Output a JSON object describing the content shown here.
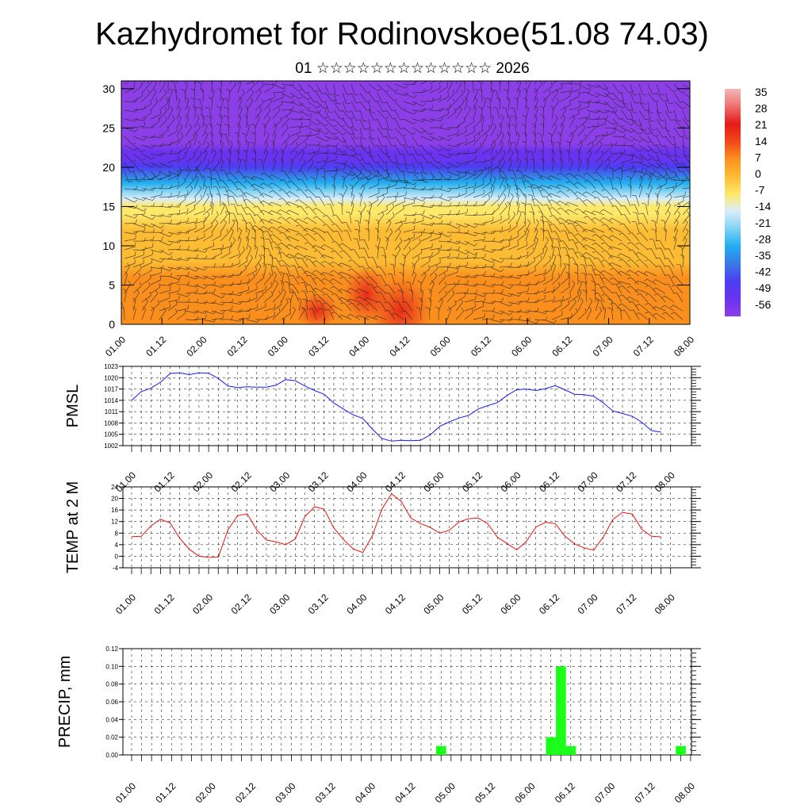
{
  "title": "Kazhydromet for Rodinovskoe(51.08 74.03)",
  "subtitle": "01 ☆☆☆☆☆☆☆☆☆☆☆☆☆ 2026",
  "time_labels": [
    "01.00",
    "01.12",
    "02.00",
    "02.12",
    "03.00",
    "03.12",
    "04.00",
    "04.12",
    "05.00",
    "05.12",
    "06.00",
    "06.12",
    "07.00",
    "07.12",
    "08.00"
  ],
  "colorbar": {
    "labels": [
      "35",
      "28",
      "21",
      "14",
      "7",
      "0",
      "-7",
      "-14",
      "-21",
      "-28",
      "-35",
      "-42",
      "-49",
      "-56"
    ],
    "colors": [
      "#f2b8b8",
      "#ee6f6f",
      "#e41a1a",
      "#f0481a",
      "#fb8f1e",
      "#fdbc34",
      "#ffe86a",
      "#d8eefb",
      "#7fd2f3",
      "#22aef0",
      "#3a78e8",
      "#4b3ef2",
      "#6a33f0",
      "#8c3fe6"
    ]
  },
  "chart_data": [
    {
      "id": "cross_section",
      "type": "heatmap",
      "description_field": "temperature cross-section with wind barbs",
      "ylim": [
        0,
        31
      ],
      "yticks": [
        "0",
        "5",
        "10",
        "15",
        "20",
        "25",
        "30"
      ],
      "levels": [
        0,
        2,
        4,
        6,
        8,
        10,
        12,
        14,
        15,
        16,
        17,
        18,
        19,
        20,
        21,
        22,
        23,
        24,
        26,
        28,
        30
      ],
      "level_temps": [
        8,
        8,
        6,
        4,
        3,
        2,
        0,
        -4,
        -8,
        -14,
        -21,
        -28,
        -35,
        -44,
        -50,
        -49,
        -53,
        -56,
        -58,
        -57,
        -58
      ]
    },
    {
      "id": "pmsl",
      "type": "line",
      "ylabel": "PMSL",
      "ylim": [
        1002,
        1023
      ],
      "yticks": [
        "1002",
        "1005",
        "1008",
        "1011",
        "1014",
        "1017",
        "1020",
        "1023"
      ],
      "color": "#1a1aff",
      "values": [
        1014.0,
        1016.3,
        1017.2,
        1018.8,
        1021.1,
        1021.3,
        1020.8,
        1021.3,
        1021.2,
        1019.8,
        1017.8,
        1017.4,
        1017.6,
        1017.5,
        1017.5,
        1018.0,
        1019.5,
        1019.2,
        1017.8,
        1016.6,
        1015.6,
        1013.3,
        1011.7,
        1010.2,
        1009.2,
        1006.4,
        1003.9,
        1003.2,
        1003.4,
        1003.3,
        1003.4,
        1004.8,
        1007.1,
        1008.3,
        1009.3,
        1010.0,
        1011.7,
        1012.6,
        1013.4,
        1015.3,
        1016.8,
        1017.0,
        1016.6,
        1017.1,
        1017.9,
        1016.8,
        1015.6,
        1015.5,
        1015.1,
        1013.3,
        1011.2,
        1010.5,
        1009.8,
        1008.2,
        1006.0,
        1005.6
      ]
    },
    {
      "id": "temp2m",
      "type": "line",
      "ylabel": "TEMP at 2 M",
      "ylim": [
        -4,
        24
      ],
      "yticks": [
        "-4",
        "0",
        "4",
        "8",
        "12",
        "16",
        "20",
        "24"
      ],
      "color": "#ee1111",
      "values": [
        6.8,
        6.9,
        10.5,
        12.8,
        11.5,
        6.2,
        2.4,
        0.0,
        -0.4,
        -0.3,
        9.1,
        14.0,
        14.7,
        9.1,
        5.6,
        5.0,
        4.0,
        6.0,
        13.7,
        17.1,
        16.3,
        9.8,
        5.8,
        2.6,
        1.3,
        7.0,
        16.3,
        21.6,
        19.0,
        13.2,
        11.3,
        10.0,
        8.0,
        9.0,
        11.8,
        13.0,
        13.2,
        11.2,
        6.6,
        4.4,
        2.2,
        5.1,
        10.1,
        11.7,
        11.3,
        7.0,
        4.3,
        2.9,
        2.1,
        6.7,
        12.8,
        15.2,
        14.6,
        9.3,
        6.9,
        6.7
      ]
    },
    {
      "id": "precip",
      "type": "bar",
      "ylabel": "PRECIP, mm",
      "ylim": [
        0,
        0.12
      ],
      "yticks": [
        "0.00",
        "0.02",
        "0.04",
        "0.06",
        "0.08",
        "0.10",
        "0.12"
      ],
      "color": "#19ff19",
      "bars": [
        {
          "t": 15.5,
          "value": 0.01
        },
        {
          "t": 21.0,
          "value": 0.02
        },
        {
          "t": 21.5,
          "value": 0.1
        },
        {
          "t": 22.0,
          "value": 0.01
        },
        {
          "t": 27.5,
          "value": 0.01
        }
      ]
    }
  ]
}
